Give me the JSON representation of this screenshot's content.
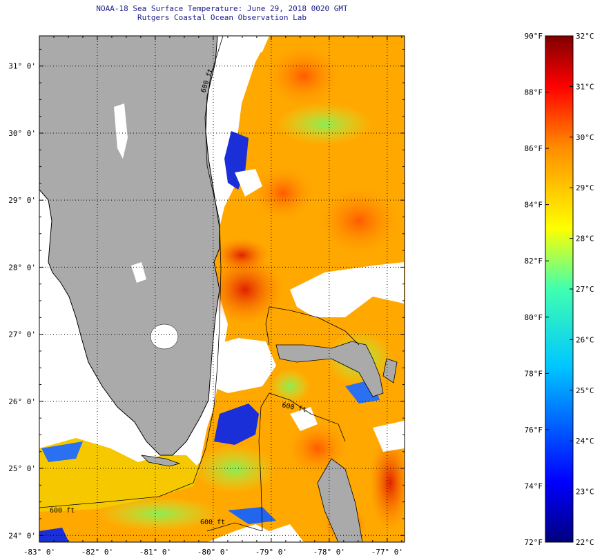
{
  "header": {
    "title": "NOAA-18 Sea Surface Temperature:  June 29, 2018 0020 GMT",
    "subtitle": "Rutgers Coastal Ocean Observation Lab"
  },
  "map": {
    "lon_range": [
      -83,
      -76.7
    ],
    "lat_range": [
      23.9,
      31.45
    ],
    "lon_ticks": [
      {
        "v": -83,
        "label": "-83° 0'"
      },
      {
        "v": -82,
        "label": "-82° 0'"
      },
      {
        "v": -81,
        "label": "-81° 0'"
      },
      {
        "v": -80,
        "label": "-80° 0'"
      },
      {
        "v": -79,
        "label": "-79° 0'"
      },
      {
        "v": -78,
        "label": "-78° 0'"
      },
      {
        "v": -77,
        "label": "-77° 0'"
      }
    ],
    "lat_ticks": [
      {
        "v": 24,
        "label": "24° 0'"
      },
      {
        "v": 25,
        "label": "25° 0'"
      },
      {
        "v": 26,
        "label": "26° 0'"
      },
      {
        "v": 27,
        "label": "27° 0'"
      },
      {
        "v": 28,
        "label": "28° 0'"
      },
      {
        "v": 29,
        "label": "29° 0'"
      },
      {
        "v": 30,
        "label": "30° 0'"
      },
      {
        "v": 31,
        "label": "31° 0'"
      }
    ],
    "contour_labels": [
      "600 ft",
      "600 ft",
      "600 ft",
      "600 ft"
    ],
    "colors": {
      "land": "#aaaaaa",
      "cloud": "#ffffff",
      "coast": "#000000"
    }
  },
  "colorbar": {
    "range_f": [
      72,
      90
    ],
    "range_c": [
      22,
      32
    ],
    "labels_f": [
      "90°F",
      "88°F",
      "86°F",
      "84°F",
      "82°F",
      "80°F",
      "78°F",
      "76°F",
      "74°F",
      "72°F"
    ],
    "values_f": [
      90,
      88,
      86,
      84,
      82,
      80,
      78,
      76,
      74,
      72
    ],
    "labels_c": [
      "32°C",
      "31°C",
      "30°C",
      "29°C",
      "28°C",
      "27°C",
      "26°C",
      "25°C",
      "24°C",
      "23°C",
      "22°C"
    ],
    "values_c": [
      32,
      31,
      30,
      29,
      28,
      27,
      26,
      25,
      24,
      23,
      22
    ]
  }
}
